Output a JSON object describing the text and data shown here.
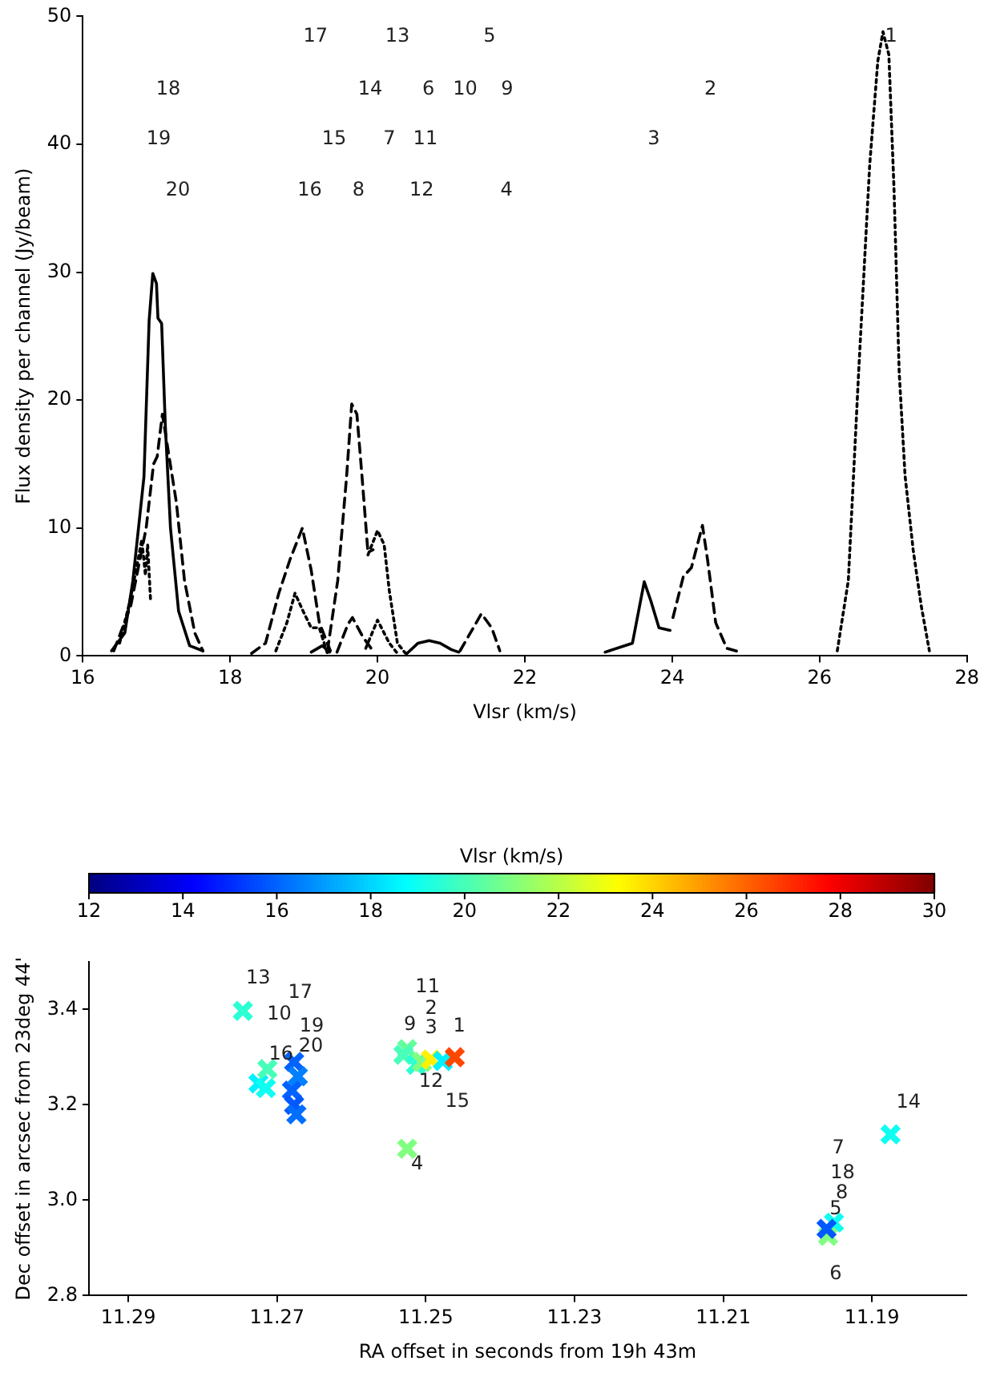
{
  "chart_data": [
    {
      "type": "line",
      "xlabel": "Vlsr (km/s)",
      "ylabel": "Flux density per channel (Jy/beam)",
      "xlim": [
        16,
        28
      ],
      "xticks": [
        16,
        18,
        20,
        22,
        24,
        26,
        28
      ],
      "ylim": [
        0,
        50
      ],
      "yticks": [
        0,
        10,
        20,
        30,
        40,
        50
      ],
      "marker": "none",
      "series": [
        {
          "color": "#000000",
          "line_style": "solid",
          "x": [
            16.39,
            16.57,
            16.68,
            16.83,
            16.9,
            16.95,
            17.0,
            17.02,
            17.07,
            17.12,
            17.19,
            17.3,
            17.45,
            17.63
          ],
          "values": [
            0.4,
            1.8,
            5.9,
            14,
            26.2,
            29.9,
            29.1,
            26.4,
            26,
            18,
            10,
            3.5,
            0.8,
            0.4
          ]
        },
        {
          "color": "#000000",
          "line_style": "solid",
          "x": [
            19.1,
            19.25,
            19.35
          ],
          "values": [
            0.3,
            0.8,
            0.3
          ]
        },
        {
          "color": "#000000",
          "line_style": "solid",
          "x": [
            20.4,
            20.55,
            20.7,
            20.85,
            21.0,
            21.1
          ],
          "values": [
            0.2,
            1.0,
            1.2,
            1.0,
            0.5,
            0.3
          ]
        },
        {
          "color": "#000000",
          "line_style": "solid",
          "x": [
            23.09,
            23.46,
            23.62,
            23.71,
            23.82,
            23.97
          ],
          "values": [
            0.3,
            1.0,
            5.8,
            4.3,
            2.2,
            2.0
          ]
        },
        {
          "color": "#000000",
          "line_style": "dashed",
          "x": [
            16.42,
            16.65,
            16.86,
            16.96,
            17.01,
            17.08,
            17.16,
            17.27,
            17.38,
            17.52,
            17.63
          ],
          "values": [
            0.4,
            3.9,
            10,
            15,
            15.6,
            18.9,
            16,
            12,
            5.9,
            1.8,
            0.4
          ]
        },
        {
          "color": "#000000",
          "line_style": "dashed",
          "x": [
            18.29,
            18.48,
            18.66,
            18.81,
            18.98,
            19.1,
            19.21,
            19.36
          ],
          "values": [
            0.2,
            1.0,
            4.9,
            7.5,
            10,
            6.7,
            2.6,
            0.4
          ]
        },
        {
          "color": "#000000",
          "line_style": "dashed",
          "x": [
            19.32,
            19.46,
            19.58,
            19.65,
            19.72,
            19.79,
            19.87,
            19.94
          ],
          "values": [
            0.4,
            5.9,
            14,
            19.7,
            18.9,
            14,
            8.1,
            8.3
          ]
        },
        {
          "color": "#000000",
          "line_style": "dashed",
          "x": [
            19.45,
            19.6,
            19.66,
            19.8,
            19.95
          ],
          "values": [
            0.3,
            2.5,
            3,
            1.5,
            0.3
          ]
        },
        {
          "color": "#000000",
          "line_style": "dashed",
          "x": [
            21.12,
            21.26,
            21.41,
            21.55,
            21.66
          ],
          "values": [
            0.4,
            1.8,
            3.3,
            2.2,
            0.4
          ]
        },
        {
          "color": "#000000",
          "line_style": "dashed",
          "x": [
            24.01,
            24.15,
            24.26,
            24.41,
            24.48,
            24.59,
            24.74,
            24.92
          ],
          "values": [
            3.0,
            6.2,
            6.9,
            10.2,
            7.5,
            2.6,
            0.6,
            0.3
          ]
        },
        {
          "color": "#000000",
          "line_style": "dotted",
          "x": [
            16.5,
            16.64,
            16.75,
            16.8,
            16.85,
            16.88,
            16.92
          ],
          "values": [
            1,
            4.3,
            7.5,
            9.1,
            6.3,
            8.7,
            4.3
          ]
        },
        {
          "color": "#000000",
          "line_style": "dotted",
          "x": [
            18.62,
            18.77,
            18.88,
            18.99,
            19.1,
            19.21,
            19.32
          ],
          "values": [
            0.4,
            2.6,
            4.9,
            3.5,
            2.2,
            2.2,
            0.2
          ]
        },
        {
          "color": "#000000",
          "line_style": "dotted",
          "x": [
            19.87,
            20.0,
            20.09,
            20.16,
            20.27,
            20.38
          ],
          "values": [
            7.9,
            9.8,
            8.7,
            5.1,
            1.0,
            0.2
          ]
        },
        {
          "color": "#000000",
          "line_style": "dotted",
          "x": [
            19.84,
            20.0,
            20.16,
            20.27
          ],
          "values": [
            0.6,
            2.8,
            1,
            0.2
          ]
        },
        {
          "color": "#000000",
          "line_style": "dotted",
          "x": [
            26.24,
            26.39,
            26.53,
            26.68,
            26.79,
            26.86,
            26.94,
            27.01,
            27.08,
            27.16,
            27.27,
            27.38,
            27.49
          ],
          "values": [
            0.4,
            5.9,
            22.2,
            38.4,
            46.5,
            48.8,
            47,
            36.5,
            22.2,
            14.1,
            8.3,
            3.9,
            0.4
          ]
        }
      ],
      "annotations": [
        "17",
        "13",
        "5",
        "1",
        "18",
        "14",
        "6",
        "10",
        "9",
        "2",
        "19",
        "15",
        "7",
        "11",
        "3",
        "20",
        "16",
        "8",
        "12",
        "4"
      ]
    },
    {
      "type": "scatter",
      "xlabel": "RA offset in seconds from 19h 43m",
      "ylabel": "Dec offset in arcsec from 23deg 44'",
      "clabel": "Vlsr (km/s)",
      "clim": [
        12,
        30
      ],
      "cticks": [
        12,
        14,
        16,
        18,
        20,
        22,
        24,
        26,
        28,
        30
      ],
      "xlim": [
        11.2953,
        11.1773
      ],
      "xticks": [
        11.29,
        11.27,
        11.25,
        11.23,
        11.21,
        11.19
      ],
      "ylim": [
        2.8,
        3.5
      ],
      "yticks": [
        2.8,
        {
          "value": 3,
          "label": "3.0"
        },
        3.2,
        3.4
      ],
      "marker": "cross",
      "x": [
        11.2746,
        11.2725,
        11.2715,
        11.2713,
        11.2677,
        11.2672,
        11.268,
        11.2677,
        11.2674,
        11.2525,
        11.253,
        11.2513,
        11.2505,
        11.2493,
        11.2477,
        11.2461,
        11.2525,
        11.1875,
        11.1959,
        11.1951,
        11.1961
      ],
      "values": [
        3.397,
        3.245,
        3.235,
        3.275,
        3.29,
        3.26,
        3.23,
        3.2,
        3.18,
        3.317,
        3.305,
        3.284,
        3.29,
        3.295,
        3.292,
        3.3,
        3.108,
        3.138,
        2.925,
        2.953,
        2.94
      ],
      "cvalues": [
        19.5,
        18.5,
        19,
        20,
        16,
        16.5,
        16,
        15.8,
        16.2,
        20.5,
        20,
        19.5,
        21,
        23.5,
        18.5,
        26.5,
        21,
        19,
        21,
        19,
        15.8
      ],
      "annotations": [
        "13",
        "17",
        "10",
        "19",
        "20",
        "16",
        "11",
        "2",
        "3",
        "9",
        "1",
        "12",
        "15",
        "4",
        "14",
        "7",
        "18",
        "8",
        "5",
        "6"
      ]
    }
  ]
}
